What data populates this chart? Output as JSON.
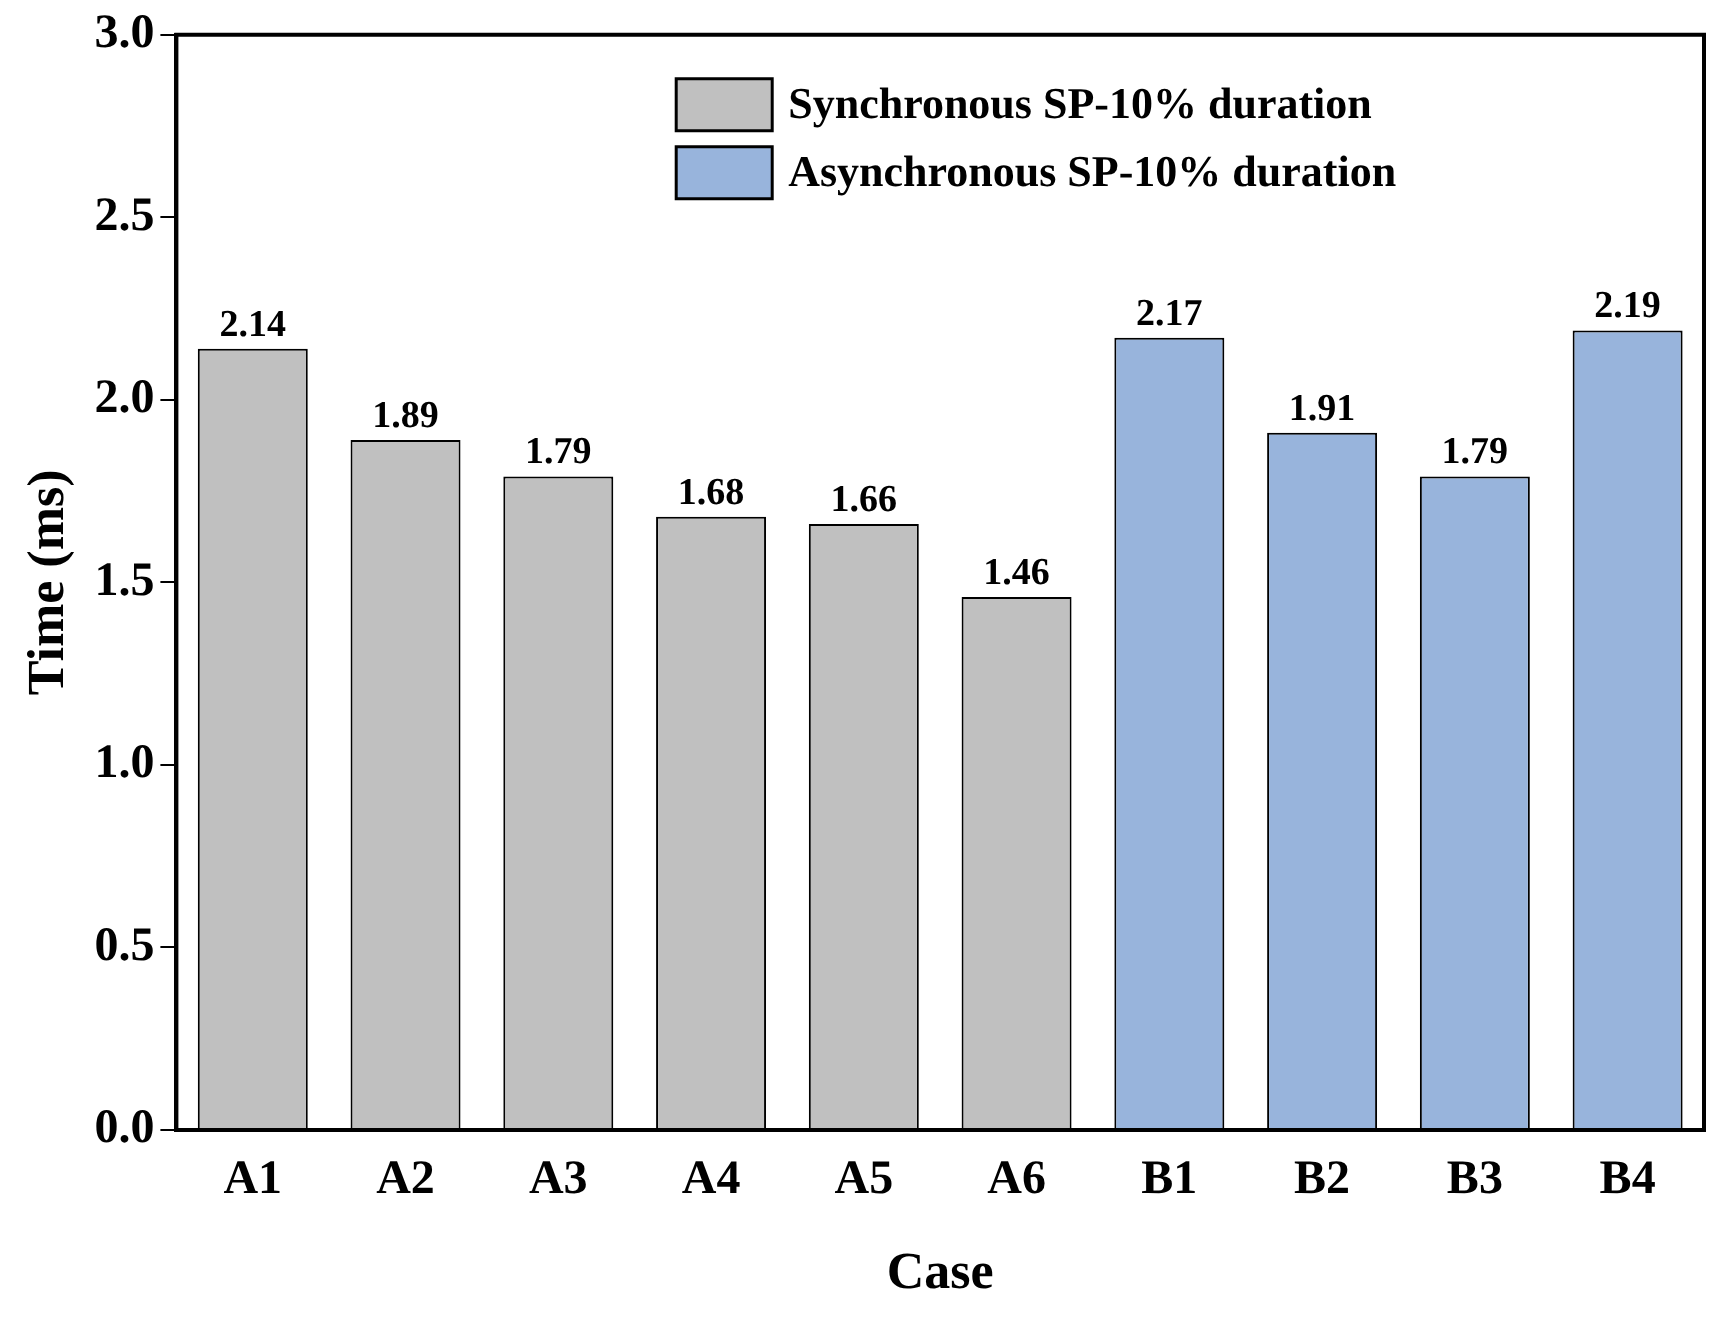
{
  "chart_data": {
    "type": "bar",
    "xlabel": "Case",
    "ylabel": "Time (ms)",
    "categories": [
      "A1",
      "A2",
      "A3",
      "A4",
      "A5",
      "A6",
      "B1",
      "B2",
      "B3",
      "B4"
    ],
    "series": [
      {
        "name": "Synchronous SP-10% duration",
        "color": "#c0c0c0",
        "values": [
          2.14,
          1.89,
          1.79,
          1.68,
          1.66,
          1.46,
          null,
          null,
          null,
          null
        ]
      },
      {
        "name": "Asynchronous SP-10% duration",
        "color": "#98b4dc",
        "values": [
          null,
          null,
          null,
          null,
          null,
          null,
          2.17,
          1.91,
          1.79,
          2.19
        ]
      }
    ],
    "ylim": [
      0,
      3
    ],
    "yticks": [
      {
        "value": 0,
        "label": "0.0"
      },
      {
        "value": 0.5,
        "label": "0.5"
      },
      {
        "value": 1,
        "label": "1.0"
      },
      {
        "value": 1.5,
        "label": "1.5"
      },
      {
        "value": 2,
        "label": "2.0"
      },
      {
        "value": 2.5,
        "label": "2.5"
      },
      {
        "value": 3,
        "label": "3.0"
      }
    ],
    "grid": false,
    "legend": "top",
    "data_labels": true
  }
}
